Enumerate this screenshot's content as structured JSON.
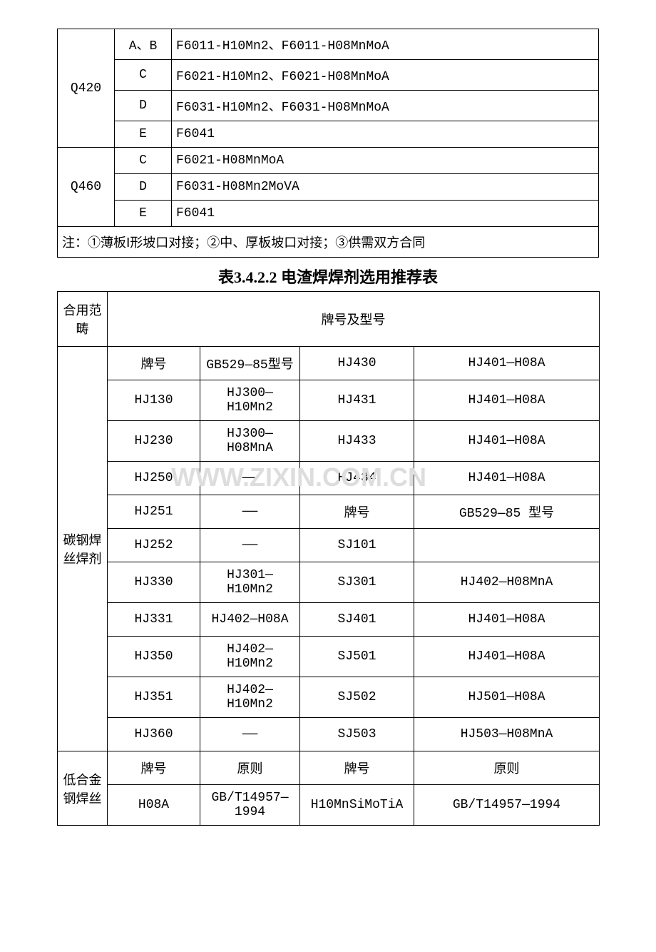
{
  "table1": {
    "rows": [
      {
        "col1": "Q420",
        "col1_rowspan": 4,
        "col2": "A、B",
        "col3": "F6011-H10Mn2、F6011-H08MnMoA"
      },
      {
        "col2": "C",
        "col3": "F6021-H10Mn2、F6021-H08MnMoA"
      },
      {
        "col2": "D",
        "col3": "F6031-H10Mn2、F6031-H08MnMoA"
      },
      {
        "col2": "E",
        "col3": "F6041"
      },
      {
        "col1": "Q460",
        "col1_rowspan": 3,
        "col2": "C",
        "col3": "F6021-H08MnMoA"
      },
      {
        "col2": "D",
        "col3": "F6031-H08Mn2MoVA"
      },
      {
        "col2": "E",
        "col3": "F6041"
      }
    ],
    "note": "注：①薄板Ⅰ形坡口对接；②中、厚板坡口对接；③供需双方合同"
  },
  "title2": "表3.4.2.2  电渣焊焊剂选用推荐表",
  "table2": {
    "header_left": "合用范畴",
    "header_right": "牌号及型号",
    "sections": [
      {
        "label": "碳钢焊丝焊剂",
        "rows": [
          [
            "牌号",
            "GB529—85型号",
            "HJ430",
            "HJ401—H08A"
          ],
          [
            "HJ130",
            "HJ300—H10Mn2",
            "HJ431",
            "HJ401—H08A"
          ],
          [
            "HJ230",
            "HJ300—H08MnA",
            "HJ433",
            "HJ401—H08A"
          ],
          [
            "HJ250",
            "——",
            "HJ434",
            "HJ401—H08A"
          ],
          [
            "HJ251",
            "——",
            "牌号",
            "GB529—85 型号"
          ],
          [
            "HJ252",
            "——",
            "SJ101",
            ""
          ],
          [
            "HJ330",
            "HJ301—H10Mn2",
            "SJ301",
            "HJ402—H08MnA"
          ],
          [
            "HJ331",
            "HJ402—H08A",
            "SJ401",
            "HJ401—H08A"
          ],
          [
            "HJ350",
            "HJ402—H10Mn2",
            "SJ501",
            "HJ401—H08A"
          ],
          [
            "HJ351",
            "HJ402—H10Mn2",
            "SJ502",
            "HJ501—H08A"
          ],
          [
            "HJ360",
            "——",
            "SJ503",
            "HJ503—H08MnA"
          ]
        ]
      },
      {
        "label": "低合金钢焊丝",
        "rows": [
          [
            "牌号",
            "原则",
            "牌号",
            "原则"
          ],
          [
            "H08A",
            "GB/T14957—1994",
            "H10MnSiMoTiA",
            "GB/T14957—1994"
          ]
        ]
      }
    ]
  },
  "watermark": "WWW.ZIXIN.COM.CN",
  "colors": {
    "border": "#000000",
    "text": "#000000",
    "background": "#ffffff",
    "watermark": "#dddddd"
  }
}
